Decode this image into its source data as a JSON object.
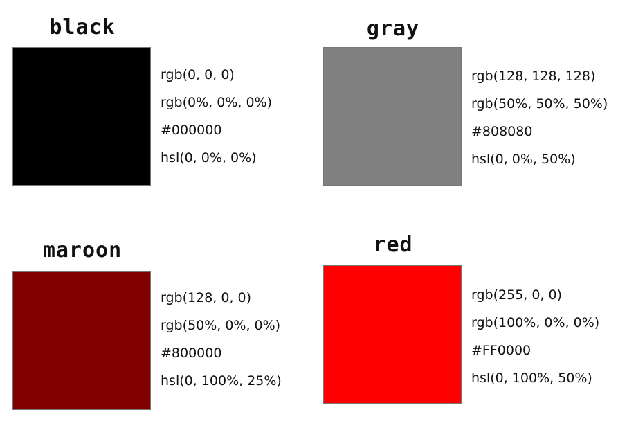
{
  "colors": [
    {
      "name": "black",
      "hex_color": "#000000",
      "codes": [
        "rgb(0, 0, 0)",
        "rgb(0%, 0%, 0%)",
        "#000000",
        "hsl(0, 0%, 0%)"
      ]
    },
    {
      "name": "gray",
      "hex_color": "#808080",
      "codes": [
        "rgb(128, 128, 128)",
        "rgb(50%, 50%, 50%)",
        "#808080",
        "hsl(0, 0%, 50%)"
      ]
    },
    {
      "name": "maroon",
      "hex_color": "#800000",
      "codes": [
        "rgb(128, 0, 0)",
        "rgb(50%, 0%, 0%)",
        "#800000",
        "hsl(0, 100%, 25%)"
      ]
    },
    {
      "name": "red",
      "hex_color": "#FF0000",
      "codes": [
        "rgb(255, 0, 0)",
        "rgb(100%, 0%, 0%)",
        "#FF0000",
        "hsl(0, 100%, 50%)"
      ]
    }
  ]
}
